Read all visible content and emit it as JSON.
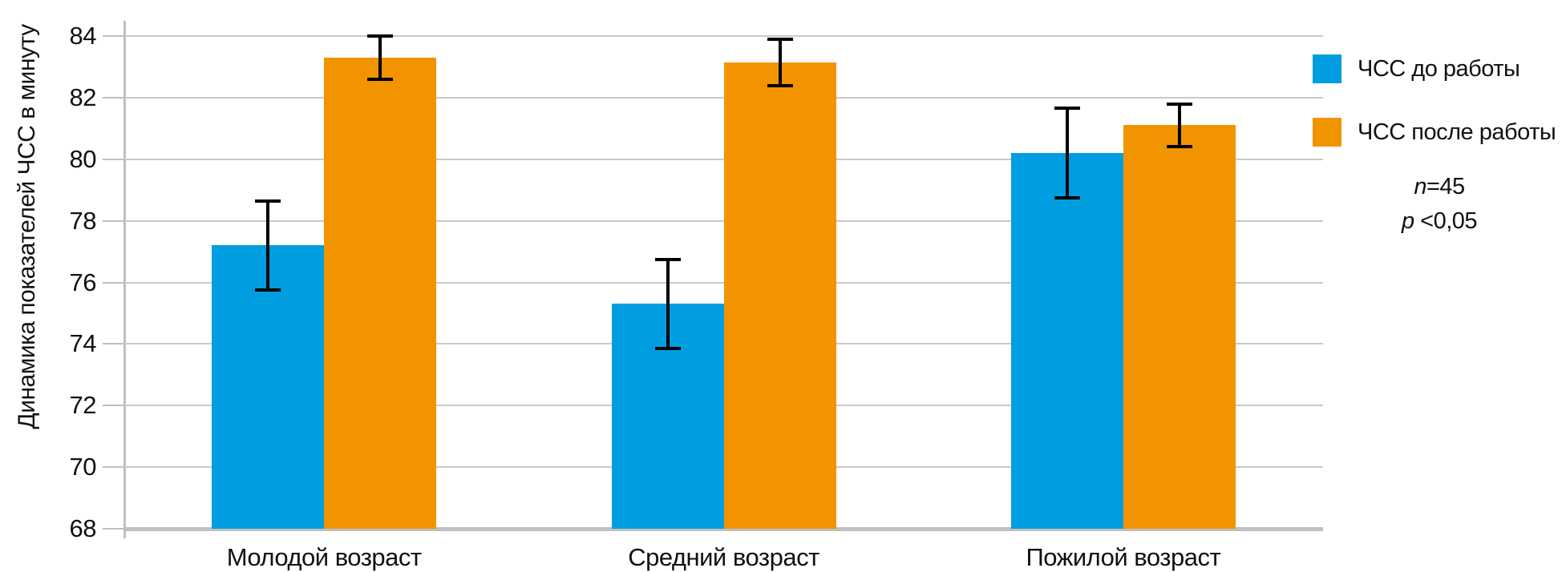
{
  "chart_data": {
    "type": "bar",
    "title": "",
    "xlabel": "",
    "ylabel": "Динамика показателей ЧСС в минуту",
    "ylim": [
      68,
      84
    ],
    "yticks": [
      68,
      70,
      72,
      74,
      76,
      78,
      80,
      82,
      84
    ],
    "grid": "horizontal gridlines only",
    "legend_position": "right",
    "categories": [
      "Молодой возраст",
      "Средний возраст",
      "Пожилой возраст"
    ],
    "series": [
      {
        "name": "ЧСС до работы",
        "color": "#009EE0",
        "values": [
          77.2,
          75.3,
          80.2
        ],
        "errors": [
          1.45,
          1.45,
          1.45
        ]
      },
      {
        "name": "ЧСС после работы",
        "color": "#F29400",
        "values": [
          83.3,
          83.15,
          81.1
        ],
        "errors": [
          0.7,
          0.75,
          0.7
        ]
      }
    ],
    "annotations": [
      {
        "italic": "n",
        "text": "=45"
      },
      {
        "italic": "p",
        "text": " <0,05"
      }
    ]
  },
  "colors": {
    "blue_series": "#009EE0",
    "orange_series": "#F29400",
    "gridline": "#C9C9C9",
    "axis": "#BFBFBF",
    "error_bar": "#000000",
    "text": "#111111",
    "background": "#FFFFFF"
  }
}
